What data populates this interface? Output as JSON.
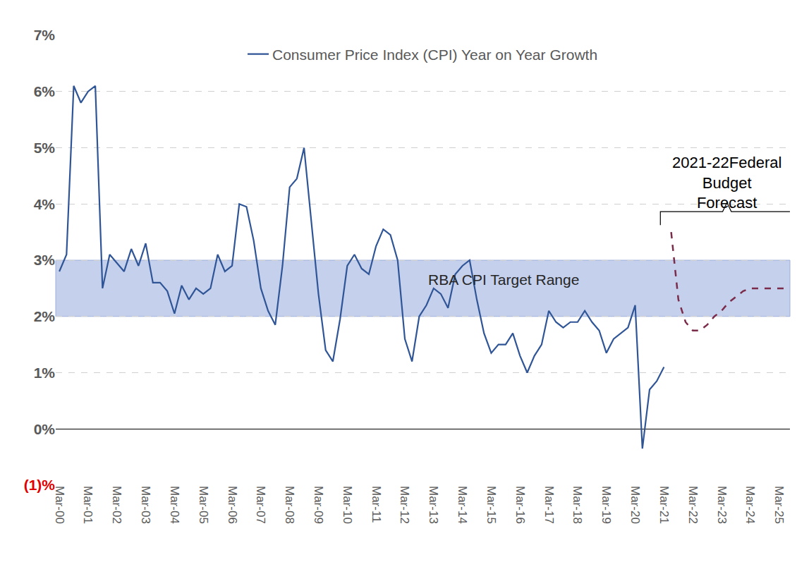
{
  "chart_data": {
    "type": "line",
    "categories": [
      "Mar-00",
      null,
      null,
      null,
      "Mar-01",
      null,
      null,
      null,
      "Mar-02",
      null,
      null,
      null,
      "Mar-03",
      null,
      null,
      null,
      "Mar-04",
      null,
      null,
      null,
      "Mar-05",
      null,
      null,
      null,
      "Mar-06",
      null,
      null,
      null,
      "Mar-07",
      null,
      null,
      null,
      "Mar-08",
      null,
      null,
      null,
      "Mar-09",
      null,
      null,
      null,
      "Mar-10",
      null,
      null,
      null,
      "Mar-11",
      null,
      null,
      null,
      "Mar-12",
      null,
      null,
      null,
      "Mar-13",
      null,
      null,
      null,
      "Mar-14",
      null,
      null,
      null,
      "Mar-15",
      null,
      null,
      null,
      "Mar-16",
      null,
      null,
      null,
      "Mar-17",
      null,
      null,
      null,
      "Mar-18",
      null,
      null,
      null,
      "Mar-19",
      null,
      null,
      null,
      "Mar-20",
      null,
      null,
      null,
      "Mar-21",
      null,
      null,
      null,
      "Mar-22",
      null,
      null,
      null,
      "Mar-23",
      null,
      null,
      null,
      "Mar-24",
      null,
      null,
      null,
      "Mar-25",
      null
    ],
    "series": [
      {
        "name": "Consumer Price Index (CPI) Year on Year Growth",
        "color": "#2f5597",
        "line_style": "solid",
        "values": [
          2.8,
          3.1,
          6.1,
          5.8,
          6.0,
          6.1,
          2.5,
          3.1,
          2.95,
          2.8,
          3.2,
          2.9,
          3.3,
          2.6,
          2.6,
          2.45,
          2.05,
          2.55,
          2.3,
          2.5,
          2.4,
          2.5,
          3.1,
          2.8,
          2.9,
          4.0,
          3.95,
          3.35,
          2.5,
          2.1,
          1.85,
          2.9,
          4.3,
          4.45,
          5.0,
          3.7,
          2.4,
          1.4,
          1.2,
          1.95,
          2.9,
          3.1,
          2.85,
          2.75,
          3.25,
          3.55,
          3.45,
          3.0,
          1.6,
          1.2,
          2.0,
          2.2,
          2.5,
          2.4,
          2.15,
          2.75,
          2.9,
          3.0,
          2.3,
          1.7,
          1.35,
          1.5,
          1.5,
          1.7,
          1.3,
          1.0,
          1.3,
          1.5,
          2.1,
          1.9,
          1.8,
          1.9,
          1.9,
          2.1,
          1.9,
          1.75,
          1.35,
          1.6,
          1.7,
          1.8,
          2.2,
          -0.35,
          0.7,
          0.85,
          1.1,
          null,
          null,
          null,
          null,
          null,
          null,
          null,
          null,
          null,
          null,
          null,
          null,
          null,
          null,
          null,
          null,
          null
        ]
      },
      {
        "color": "#7b2c4a",
        "line_style": "dash",
        "values": [
          null,
          null,
          null,
          null,
          null,
          null,
          null,
          null,
          null,
          null,
          null,
          null,
          null,
          null,
          null,
          null,
          null,
          null,
          null,
          null,
          null,
          null,
          null,
          null,
          null,
          null,
          null,
          null,
          null,
          null,
          null,
          null,
          null,
          null,
          null,
          null,
          null,
          null,
          null,
          null,
          null,
          null,
          null,
          null,
          null,
          null,
          null,
          null,
          null,
          null,
          null,
          null,
          null,
          null,
          null,
          null,
          null,
          null,
          null,
          null,
          null,
          null,
          null,
          null,
          null,
          null,
          null,
          null,
          null,
          null,
          null,
          null,
          null,
          null,
          null,
          null,
          null,
          null,
          null,
          null,
          null,
          null,
          null,
          null,
          null,
          3.5,
          2.3,
          1.9,
          1.75,
          1.75,
          1.85,
          2.0,
          2.1,
          2.25,
          2.35,
          2.45,
          2.5,
          2.5,
          2.5,
          2.5,
          2.5,
          2.5
        ]
      }
    ],
    "ylim": [
      -1,
      7
    ],
    "yticks": [
      {
        "value": -1,
        "label": "(1)%"
      },
      {
        "value": 0,
        "label": "0%"
      },
      {
        "value": 1,
        "label": "1%"
      },
      {
        "value": 2,
        "label": "2%"
      },
      {
        "value": 3,
        "label": "3%"
      },
      {
        "value": 4,
        "label": "4%"
      },
      {
        "value": 5,
        "label": "5%"
      },
      {
        "value": 6,
        "label": "6%"
      },
      {
        "value": 7,
        "label": "7%"
      }
    ],
    "bands": [
      {
        "from": 2,
        "to": 3,
        "label": "RBA CPI Target Range"
      }
    ],
    "annotations": [
      {
        "lines": [
          "2021-22Federal",
          "Budget",
          "Forecast"
        ]
      }
    ],
    "grid": true,
    "legend": "top"
  }
}
